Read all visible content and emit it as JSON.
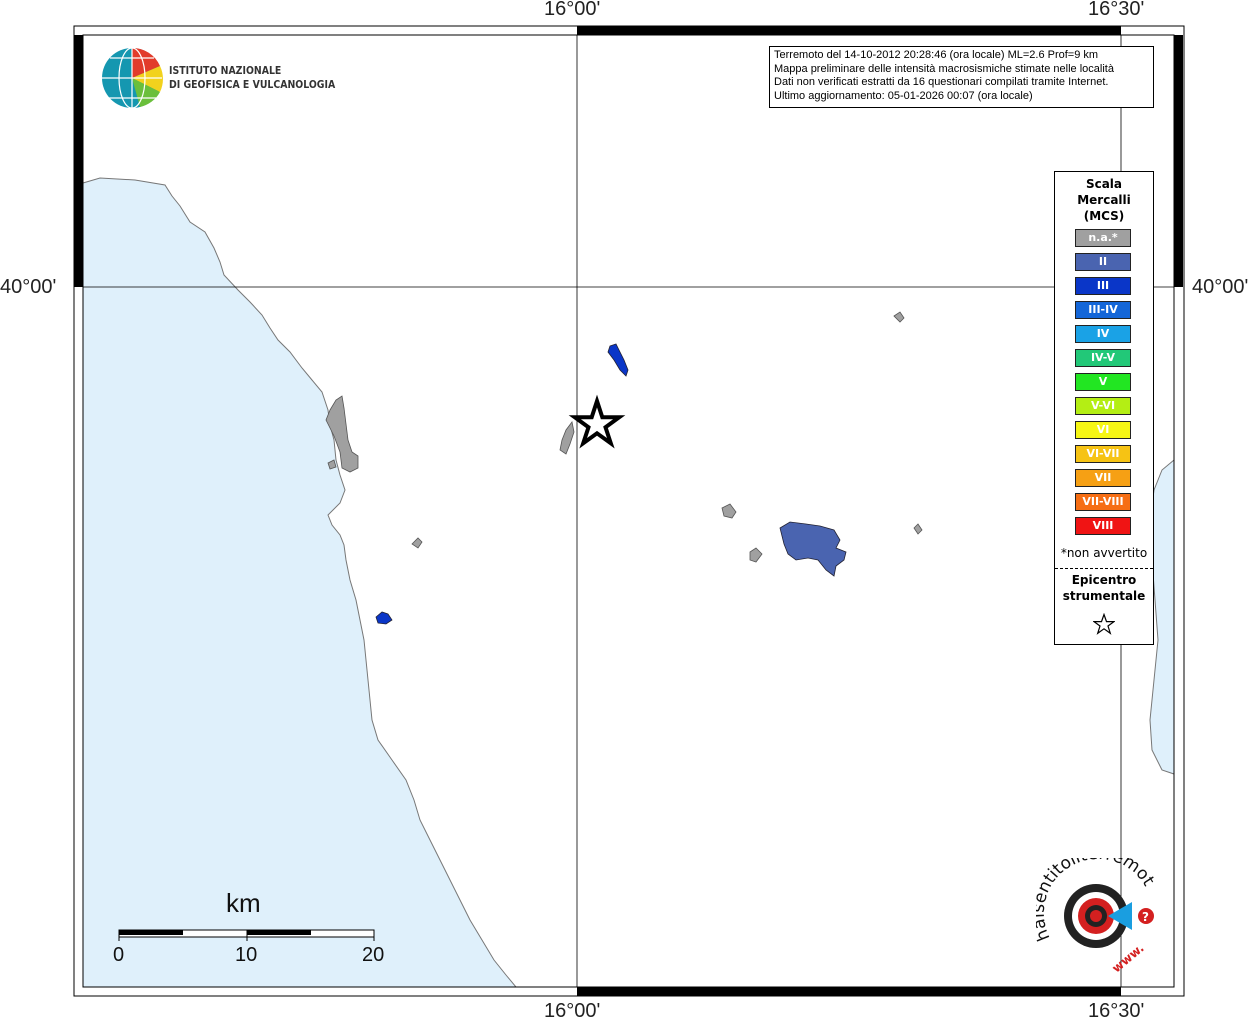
{
  "map": {
    "lon_labels": [
      "16°00'",
      "16°30'"
    ],
    "lat_labels": [
      "40°00'"
    ]
  },
  "institute": {
    "line1": "ISTITUTO NAZIONALE",
    "line2": "DI GEOFISICA E VULCANOLOGIA"
  },
  "info": {
    "line1": "Terremoto del 14-10-2012 20:28:46 (ora locale) ML=2.6 Prof=9 km",
    "line2": "Mappa preliminare delle intensità macrosismiche stimate nelle località",
    "line3": "Dati non verificati estratti da 16 questionari compilati tramite Internet.",
    "line4": "Ultimo aggiornamento: 05-01-2026 00:07 (ora locale)"
  },
  "legend": {
    "title_line1": "Scala",
    "title_line2": "Mercalli",
    "title_line3": "(MCS)",
    "items": [
      {
        "label": "n.a.*",
        "color": "#a0a0a0"
      },
      {
        "label": "II",
        "color": "#4a64b0"
      },
      {
        "label": "III",
        "color": "#0a36c8"
      },
      {
        "label": "III-IV",
        "color": "#1466d8"
      },
      {
        "label": "IV",
        "color": "#1aa2e6"
      },
      {
        "label": "IV-V",
        "color": "#22c878"
      },
      {
        "label": "V",
        "color": "#22e622"
      },
      {
        "label": "V-VI",
        "color": "#b4ee14"
      },
      {
        "label": "VI",
        "color": "#f6f614"
      },
      {
        "label": "VI-VII",
        "color": "#f6c314"
      },
      {
        "label": "VII",
        "color": "#f6a014"
      },
      {
        "label": "VII-VIII",
        "color": "#f66e14"
      },
      {
        "label": "VIII",
        "color": "#f01414"
      }
    ],
    "note": "*non avvertito",
    "epicenter_line1": "Epicentro",
    "epicenter_line2": "strumentale"
  },
  "scale_bar": {
    "unit": "km",
    "ticks": [
      "0",
      "10",
      "20"
    ]
  },
  "branding": {
    "site_text": "haisentitoilterremoto.it",
    "www_text": "www.",
    "question_mark": "?"
  },
  "colors": {
    "sea": "#dff0fb",
    "land": "#ffffff",
    "coastline": "#777777",
    "na_municipality": "#a0a0a0",
    "intensity_II": "#4a64b0",
    "intensity_III": "#0a36c8"
  }
}
